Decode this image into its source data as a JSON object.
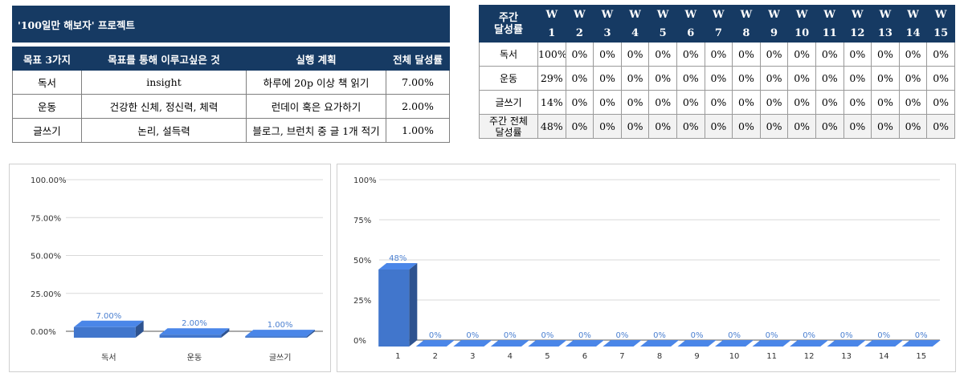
{
  "goals_table": {
    "title": "'100일만 해보자' 프로젝트",
    "headers": [
      "목표 3가지",
      "목표를 통해 이루고싶은 것",
      "실행 계획",
      "전체 달성률"
    ],
    "rows": [
      [
        "독서",
        "insight",
        "하루에 20p 이상 책 읽기",
        "7.00%"
      ],
      [
        "운동",
        "건강한 신체, 정신력, 체력",
        "런데이 혹은 요가하기",
        "2.00%"
      ],
      [
        "글쓰기",
        "논리, 설득력",
        "블로그, 브런치 중 글 1개 적기",
        "1.00%"
      ]
    ]
  },
  "weekly_table": {
    "corner_line1": "주간",
    "corner_line2": "달성률",
    "week_prefix": "W",
    "weeks": [
      "1",
      "2",
      "3",
      "4",
      "5",
      "6",
      "7",
      "8",
      "9",
      "10",
      "11",
      "12",
      "13",
      "14",
      "15"
    ],
    "rows": [
      {
        "label1": "독서",
        "label2": "",
        "values": [
          "100%",
          "0%",
          "0%",
          "0%",
          "0%",
          "0%",
          "0%",
          "0%",
          "0%",
          "0%",
          "0%",
          "0%",
          "0%",
          "0%",
          "0%"
        ]
      },
      {
        "label1": "운동",
        "label2": "",
        "values": [
          "29%",
          "0%",
          "0%",
          "0%",
          "0%",
          "0%",
          "0%",
          "0%",
          "0%",
          "0%",
          "0%",
          "0%",
          "0%",
          "0%",
          "0%"
        ]
      },
      {
        "label1": "글쓰기",
        "label2": "",
        "values": [
          "14%",
          "0%",
          "0%",
          "0%",
          "0%",
          "0%",
          "0%",
          "0%",
          "0%",
          "0%",
          "0%",
          "0%",
          "0%",
          "0%",
          "0%"
        ]
      },
      {
        "label1": "주간 전체",
        "label2": "달성률",
        "values": [
          "48%",
          "0%",
          "0%",
          "0%",
          "0%",
          "0%",
          "0%",
          "0%",
          "0%",
          "0%",
          "0%",
          "0%",
          "0%",
          "0%",
          "0%"
        ],
        "total": true
      }
    ]
  },
  "chart_data": [
    {
      "type": "bar",
      "categories": [
        "독서",
        "운동",
        "글쓰기"
      ],
      "values": [
        7,
        2,
        1
      ],
      "value_labels": [
        "7.00%",
        "2.00%",
        "1.00%"
      ],
      "ylim": [
        0,
        100
      ],
      "y_ticks": [
        0,
        25,
        50,
        75,
        100
      ],
      "y_tick_labels": [
        "0.00%",
        "25.00%",
        "50.00%",
        "75.00%",
        "100.00%"
      ],
      "bar_color": "#4a86e8",
      "grid": true,
      "title": "",
      "xlabel": "",
      "ylabel": ""
    },
    {
      "type": "bar",
      "categories": [
        "1",
        "2",
        "3",
        "4",
        "5",
        "6",
        "7",
        "8",
        "9",
        "10",
        "11",
        "12",
        "13",
        "14",
        "15"
      ],
      "values": [
        48,
        0,
        0,
        0,
        0,
        0,
        0,
        0,
        0,
        0,
        0,
        0,
        0,
        0,
        0
      ],
      "value_labels": [
        "48%",
        "0%",
        "0%",
        "0%",
        "0%",
        "0%",
        "0%",
        "0%",
        "0%",
        "0%",
        "0%",
        "0%",
        "0%",
        "0%",
        "0%"
      ],
      "ylim": [
        0,
        100
      ],
      "y_ticks": [
        0,
        25,
        50,
        75,
        100
      ],
      "y_tick_labels": [
        "0%",
        "25%",
        "50%",
        "75%",
        "100%"
      ],
      "bar_color": "#4a86e8",
      "grid": true,
      "title": "",
      "xlabel": "",
      "ylabel": ""
    }
  ]
}
